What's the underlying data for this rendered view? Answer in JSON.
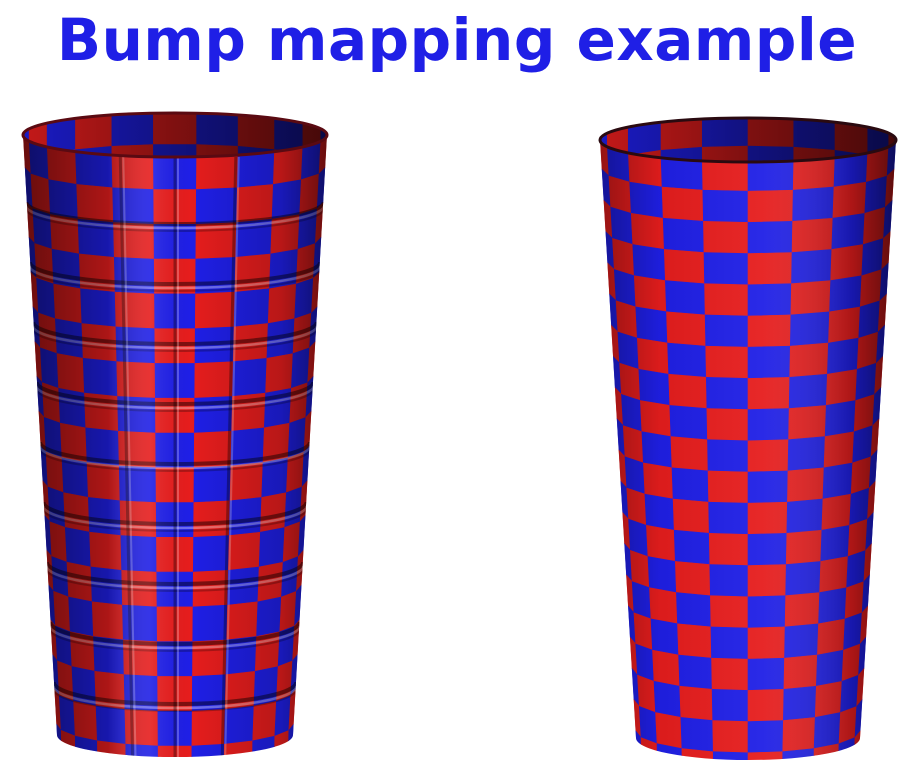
{
  "slide": {
    "title": "Bump mapping example"
  },
  "colors": {
    "title": "#1f1fe6",
    "checker_red": "#e61d1d",
    "checker_blue": "#1f1fe6",
    "background": "#ffffff"
  },
  "figures": [
    {
      "id": "bump-mapped-cylinder",
      "surface": "checkerboard with bump-map ridges"
    },
    {
      "id": "plain-cylinder",
      "surface": "smooth checkerboard"
    }
  ]
}
